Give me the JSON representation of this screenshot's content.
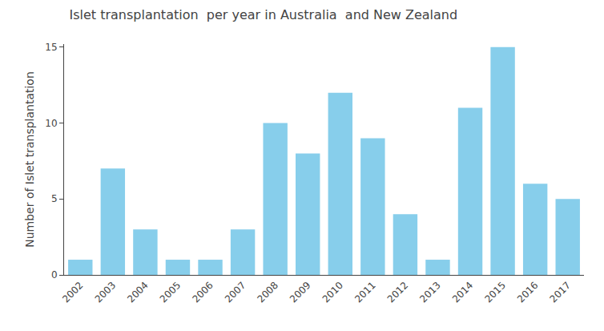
{
  "chart_data": {
    "type": "bar",
    "title": "Islet transplantation  per year in Australia  and New Zealand",
    "ylabel": "Number of Islet transplantation",
    "categories": [
      "2002",
      "2003",
      "2004",
      "2005",
      "2006",
      "2007",
      "2008",
      "2009",
      "2010",
      "2011",
      "2012",
      "2013",
      "2014",
      "2015",
      "2016",
      "2017"
    ],
    "values": [
      1,
      7,
      3,
      1,
      1,
      3,
      10,
      8,
      12,
      9,
      4,
      1,
      11,
      15,
      6,
      5
    ],
    "color": "#87CEEB",
    "ylim": [
      0,
      15.2
    ],
    "yticks": [
      0,
      5,
      10,
      15
    ],
    "grid": false
  }
}
